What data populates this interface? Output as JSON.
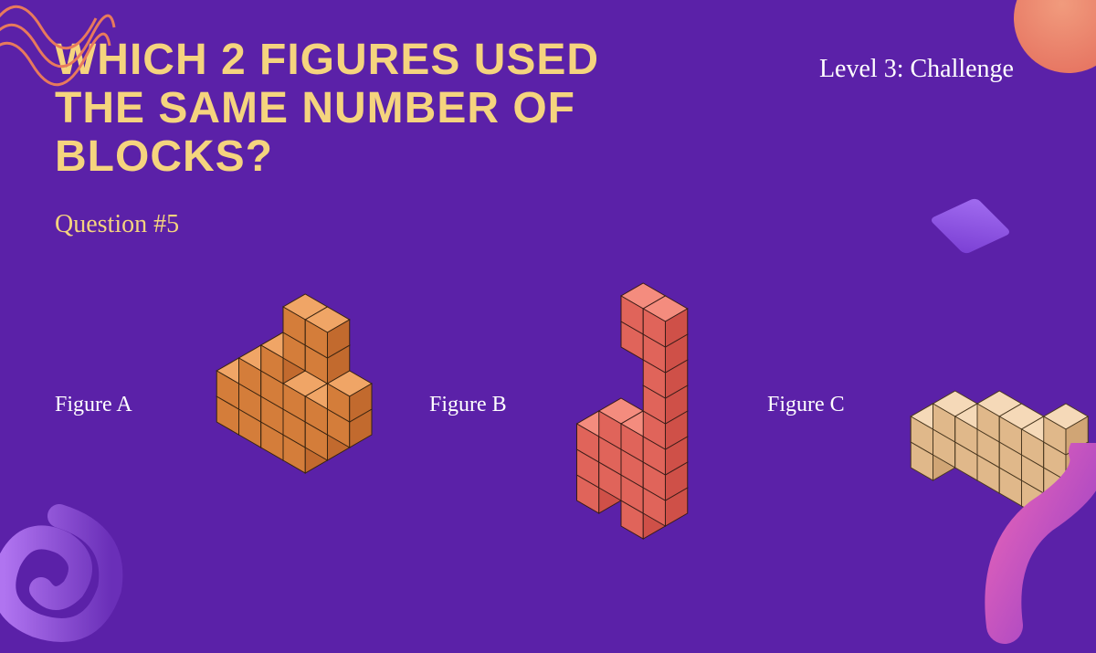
{
  "title": "WHICH 2 FIGURES USED THE SAME NUMBER OF BLOCKS?",
  "level": "Level 3: Challenge",
  "question": "Question #5",
  "colors": {
    "background": "#5b21a8",
    "title_text": "#f5d47e",
    "level_text": "#ffffff",
    "question_text": "#f5d47e",
    "label_text": "#ffffff"
  },
  "typography": {
    "title_fontsize": 48,
    "title_weight": 900,
    "level_fontsize": 28,
    "question_fontsize": 28,
    "label_fontsize": 24
  },
  "figures": {
    "a": {
      "label": "Figure A",
      "cube_size": 28,
      "colors": {
        "top": "#f0a566",
        "left": "#d47d3a",
        "right": "#c26a2e",
        "stroke": "#3a2410"
      },
      "cubes": [
        [
          0,
          0,
          0
        ],
        [
          1,
          0,
          0
        ],
        [
          2,
          0,
          0
        ],
        [
          3,
          0,
          0
        ],
        [
          0,
          1,
          0
        ],
        [
          1,
          1,
          0
        ],
        [
          2,
          1,
          0
        ],
        [
          3,
          1,
          0
        ],
        [
          0,
          2,
          0
        ],
        [
          1,
          2,
          0
        ],
        [
          2,
          2,
          0
        ],
        [
          3,
          2,
          0
        ],
        [
          0,
          0,
          1
        ],
        [
          3,
          0,
          1
        ],
        [
          0,
          1,
          1
        ],
        [
          3,
          1,
          1
        ],
        [
          1,
          0,
          2
        ],
        [
          2,
          0,
          2
        ],
        [
          1,
          1,
          2
        ],
        [
          2,
          1,
          2
        ],
        [
          1,
          0,
          3
        ],
        [
          2,
          0,
          3
        ],
        [
          0,
          2,
          1
        ],
        [
          3,
          2,
          1
        ]
      ]
    },
    "b": {
      "label": "Figure B",
      "cube_size": 28,
      "colors": {
        "top": "#f48c7e",
        "left": "#e0645a",
        "right": "#cf5048",
        "stroke": "#3a1c18"
      },
      "cubes": [
        [
          0,
          0,
          0
        ],
        [
          1,
          0,
          0
        ],
        [
          2,
          0,
          0
        ],
        [
          0,
          1,
          0
        ],
        [
          2,
          1,
          0
        ],
        [
          0,
          0,
          1
        ],
        [
          1,
          0,
          1
        ],
        [
          2,
          0,
          1
        ],
        [
          0,
          1,
          1
        ],
        [
          2,
          1,
          1
        ],
        [
          0,
          0,
          2
        ],
        [
          1,
          0,
          2
        ],
        [
          2,
          0,
          2
        ],
        [
          0,
          1,
          2
        ],
        [
          1,
          1,
          2
        ],
        [
          2,
          1,
          2
        ],
        [
          2,
          0,
          3
        ],
        [
          2,
          0,
          4
        ],
        [
          2,
          0,
          5
        ],
        [
          2,
          0,
          6
        ],
        [
          2,
          0,
          7
        ],
        [
          2,
          1,
          7
        ],
        [
          1,
          0,
          7
        ]
      ]
    },
    "c": {
      "label": "Figure C",
      "cube_size": 28,
      "colors": {
        "top": "#f5d9b8",
        "left": "#e0b88a",
        "right": "#d0a575",
        "stroke": "#4a3820"
      },
      "cubes": [
        [
          0,
          0,
          0
        ],
        [
          1,
          0,
          0
        ],
        [
          2,
          0,
          0
        ],
        [
          3,
          0,
          0
        ],
        [
          4,
          0,
          0
        ],
        [
          0,
          1,
          0
        ],
        [
          1,
          1,
          0
        ],
        [
          2,
          1,
          0
        ],
        [
          3,
          1,
          0
        ],
        [
          4,
          1,
          0
        ],
        [
          1,
          0,
          1
        ],
        [
          2,
          0,
          1
        ],
        [
          3,
          0,
          1
        ],
        [
          4,
          0,
          1
        ],
        [
          1,
          1,
          1
        ],
        [
          2,
          1,
          1
        ],
        [
          3,
          1,
          1
        ],
        [
          4,
          1,
          1
        ],
        [
          4,
          0,
          2
        ],
        [
          4,
          1,
          2
        ],
        [
          0,
          2,
          0
        ],
        [
          0,
          2,
          1
        ],
        [
          -1,
          0,
          0
        ],
        [
          -1,
          1,
          0
        ]
      ]
    }
  },
  "decorations": {
    "topleft_squiggle_color": "#e87a5c",
    "topright_blob_colors": [
      "#f19b7d",
      "#e36a5a"
    ],
    "midright_diamond_colors": [
      "#a16cf0",
      "#7b3fd4"
    ],
    "bottomleft_spiral_colors": [
      "#b074f0",
      "#6a2fb8"
    ],
    "bottomright_tube_colors": [
      "#e864b8",
      "#9840c8"
    ]
  }
}
